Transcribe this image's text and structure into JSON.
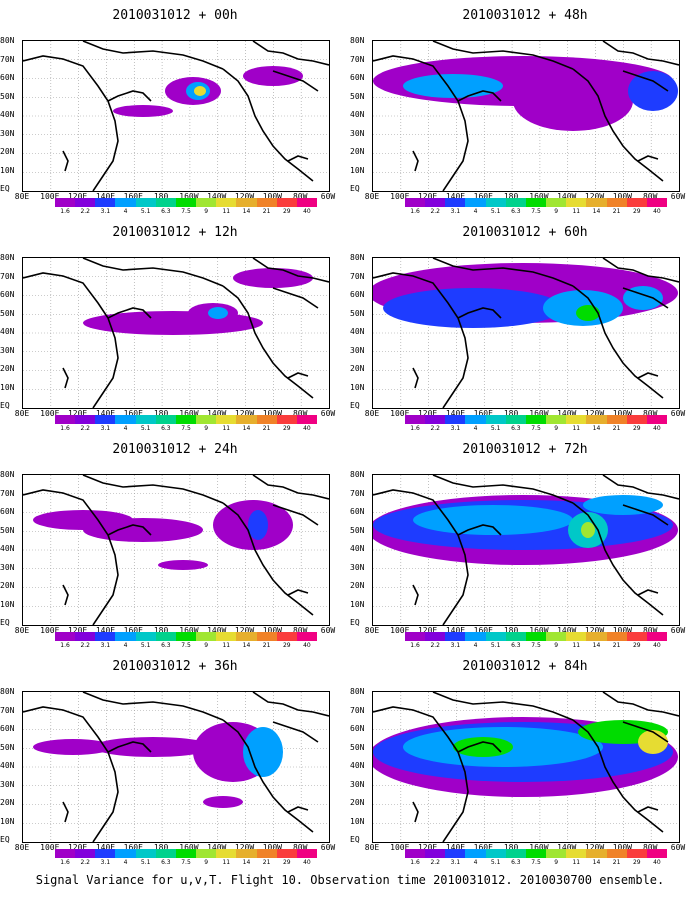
{
  "colorbar": {
    "labels": [
      "1.6",
      "2.2",
      "3.1",
      "4",
      "5.1",
      "6.3",
      "7.5",
      "9",
      "11",
      "14",
      "21",
      "29",
      "40"
    ],
    "colors": [
      "#a000c8",
      "#8200dc",
      "#1e3cff",
      "#00a0ff",
      "#00c8c8",
      "#00d28c",
      "#00dc00",
      "#a0e632",
      "#e6dc32",
      "#e6af2d",
      "#f08228",
      "#fa3c3c",
      "#f00082"
    ]
  },
  "lat_labels": [
    "80N",
    "70N",
    "60N",
    "50N",
    "40N",
    "30N",
    "20N",
    "10N",
    "EQ"
  ],
  "lon_labels": [
    "80E",
    "100E",
    "120E",
    "140E",
    "160E",
    "180",
    "160W",
    "140W",
    "120W",
    "100W",
    "80W",
    "60W"
  ],
  "panels": [
    {
      "title": "2010031012 + 00h",
      "level": 0
    },
    {
      "title": "2010031012 + 48h",
      "level": 4
    },
    {
      "title": "2010031012 + 12h",
      "level": 1
    },
    {
      "title": "2010031012 + 60h",
      "level": 5
    },
    {
      "title": "2010031012 + 24h",
      "level": 2
    },
    {
      "title": "2010031012 + 72h",
      "level": 6
    },
    {
      "title": "2010031012 + 36h",
      "level": 3
    },
    {
      "title": "2010031012 + 84h",
      "level": 7
    }
  ],
  "caption": "Signal Variance for u,v,T. Flight 10. Observation time 2010031012. 2010030700 ensemble."
}
